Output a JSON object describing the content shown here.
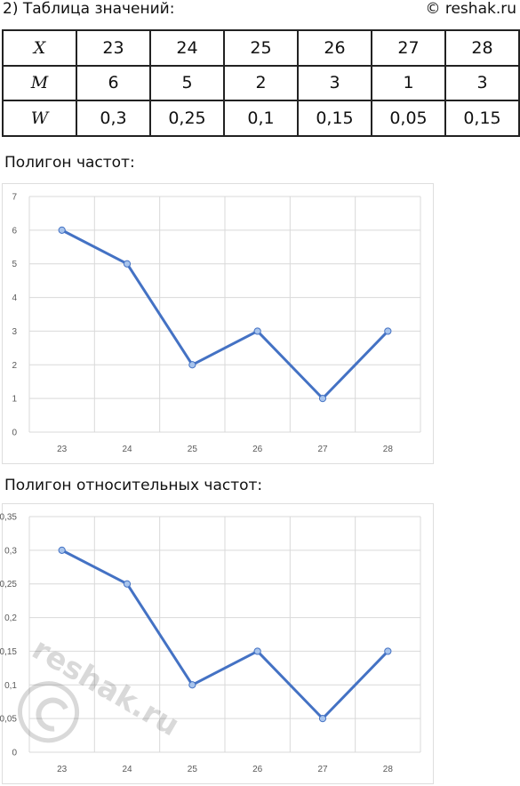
{
  "header": {
    "title": "2) Таблица значений:",
    "source": "© reshak.ru"
  },
  "table": {
    "rows": [
      {
        "head": "X",
        "cells": [
          "23",
          "24",
          "25",
          "26",
          "27",
          "28"
        ]
      },
      {
        "head": "M",
        "cells": [
          "6",
          "5",
          "2",
          "3",
          "1",
          "3"
        ]
      },
      {
        "head": "W",
        "cells": [
          "0,3",
          "0,25",
          "0,1",
          "0,15",
          "0,05",
          "0,15"
        ]
      }
    ]
  },
  "captions": {
    "polygon_frequencies": "Полигон частот:",
    "polygon_relative": "Полигон относительных частот:"
  },
  "colors": {
    "line": "#4472C4",
    "marker_fill": "#A8C4EC",
    "grid": "#D9D9D9"
  },
  "watermark_text": "reshak.ru",
  "chart_data": [
    {
      "type": "line",
      "title": "",
      "xlabel": "",
      "ylabel": "",
      "categories": [
        "23",
        "24",
        "25",
        "26",
        "27",
        "28"
      ],
      "values": [
        6,
        5,
        2,
        3,
        1,
        3
      ],
      "ylim": [
        0,
        7
      ],
      "yticks": [
        "0",
        "1",
        "2",
        "3",
        "4",
        "5",
        "6",
        "7"
      ],
      "grid": true
    },
    {
      "type": "line",
      "title": "",
      "xlabel": "",
      "ylabel": "",
      "categories": [
        "23",
        "24",
        "25",
        "26",
        "27",
        "28"
      ],
      "values": [
        0.3,
        0.25,
        0.1,
        0.15,
        0.05,
        0.15
      ],
      "ylim": [
        0,
        0.35
      ],
      "yticks": [
        "0",
        "0,05",
        "0,1",
        "0,15",
        "0,2",
        "0,25",
        "0,3",
        "0,35"
      ],
      "grid": true
    }
  ]
}
